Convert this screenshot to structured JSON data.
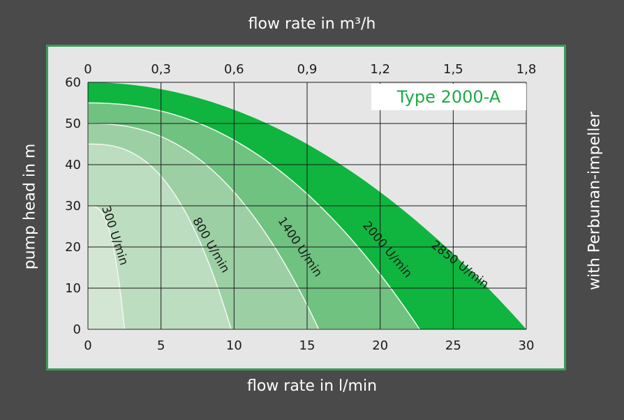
{
  "chart_data": {
    "type": "area",
    "title": "Type 2000-A",
    "subtitle": "with Perbunan-impeller",
    "xlabel": "flow rate in l/min",
    "x2label": "flow rate in m³/h",
    "ylabel": "pump head in m",
    "xlim": [
      0,
      30
    ],
    "ylim": [
      0,
      60
    ],
    "x_ticks": [
      "0",
      "5",
      "10",
      "15",
      "20",
      "25",
      "30"
    ],
    "x2_ticks": [
      "0",
      "0,3",
      "0,6",
      "0,9",
      "1,2",
      "1,5",
      "1,8"
    ],
    "y_ticks": [
      "0",
      "10",
      "20",
      "30",
      "40",
      "50",
      "60"
    ],
    "grid": true,
    "series": [
      {
        "name": "2850 U/min",
        "label": "2850 U/min",
        "color": "#0fb53e",
        "head0": 60,
        "flow0": 30,
        "exp": 2.0
      },
      {
        "name": "2000 U/min",
        "label": "2000 U/min",
        "color": "#6fc27f",
        "head0": 55,
        "flow0": 22.7,
        "exp": 2.2
      },
      {
        "name": "1400 U/min",
        "label": "1400 U/min",
        "color": "#9cd0a4",
        "head0": 50,
        "flow0": 15.8,
        "exp": 2.4
      },
      {
        "name": "800 U/min",
        "label": "800 U/min",
        "color": "#bcddbf",
        "head0": 45,
        "flow0": 9.8,
        "exp": 2.6
      },
      {
        "name": "300 U/min",
        "label": "300 U/min",
        "color": "#d3e6d3",
        "head0": 30,
        "flow0": 2.5,
        "exp": 3.0
      }
    ]
  }
}
